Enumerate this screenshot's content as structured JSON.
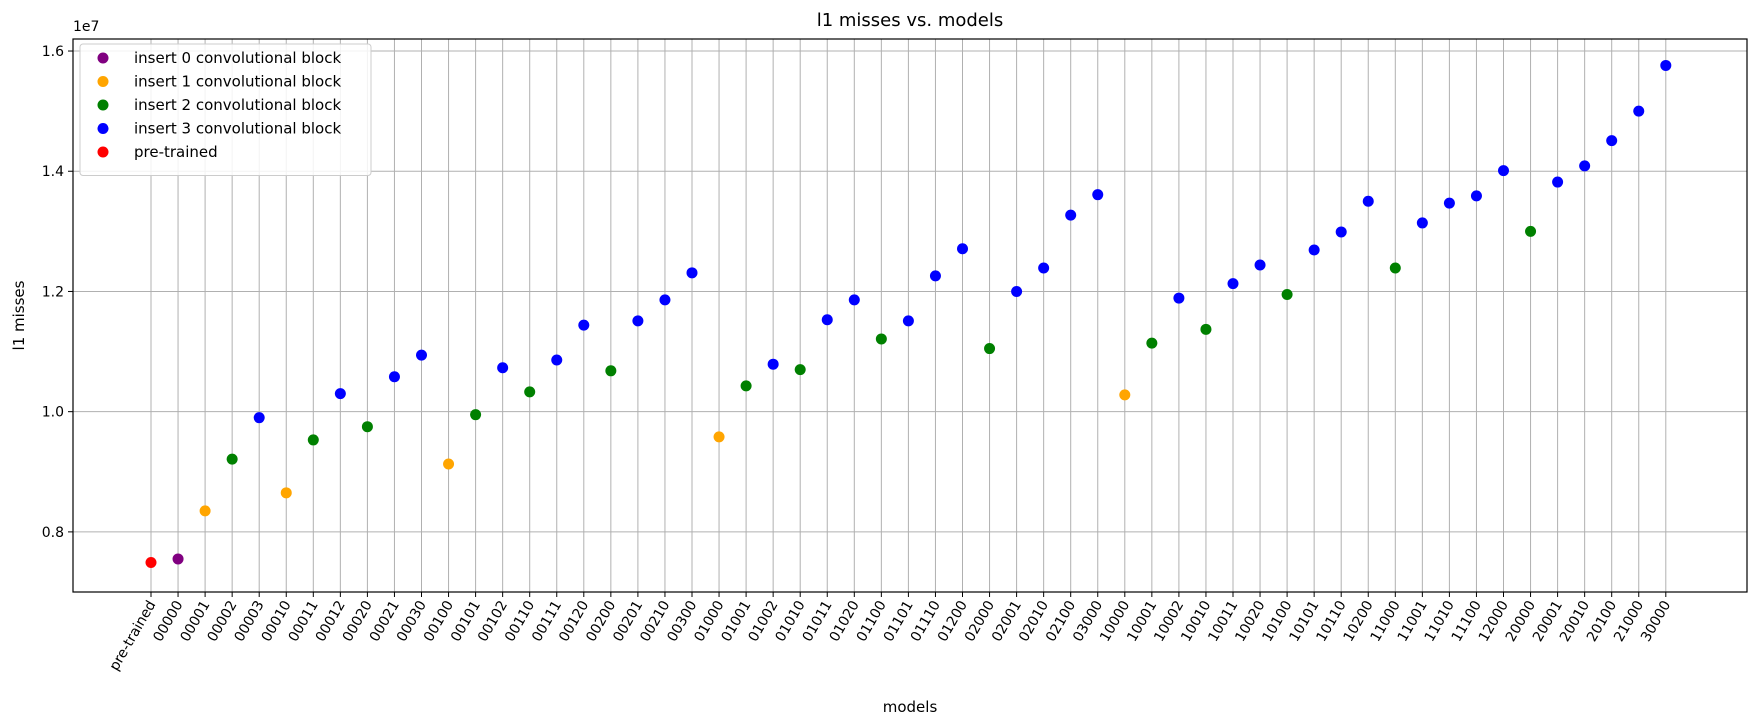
{
  "chart_data": {
    "type": "scatter",
    "title": "l1 misses vs. models",
    "xlabel": "models",
    "ylabel": "l1 misses",
    "y_multiplier_label": "1e7",
    "categories": [
      "pre-trained",
      "00000",
      "00001",
      "00002",
      "00003",
      "00010",
      "00011",
      "00012",
      "00020",
      "00021",
      "00030",
      "00100",
      "00101",
      "00102",
      "00110",
      "00111",
      "00120",
      "00200",
      "00201",
      "00210",
      "00300",
      "01000",
      "01001",
      "01002",
      "01010",
      "01011",
      "01020",
      "01100",
      "01101",
      "01110",
      "01200",
      "02000",
      "02001",
      "02010",
      "02100",
      "03000",
      "10000",
      "10001",
      "10002",
      "10010",
      "10011",
      "10020",
      "10100",
      "10101",
      "10110",
      "10200",
      "11000",
      "11001",
      "11010",
      "11100",
      "12000",
      "20000",
      "20001",
      "20010",
      "20100",
      "21000",
      "30000"
    ],
    "yticks": [
      0.8,
      1.0,
      1.2,
      1.4,
      1.6
    ],
    "ytick_labels": [
      "0.8",
      "1.0",
      "1.2",
      "1.4",
      "1.6"
    ],
    "ylim": [
      0.7,
      1.62
    ],
    "grid": true,
    "legend_position": "top-left",
    "series": [
      {
        "name": "insert 0 convolutional block",
        "color": "#800080",
        "points": [
          [
            "00000",
            0.755
          ]
        ]
      },
      {
        "name": "insert 1 convolutional block",
        "color": "#ffa500",
        "points": [
          [
            "00001",
            0.835
          ],
          [
            "00010",
            0.865
          ],
          [
            "00100",
            0.913
          ],
          [
            "01000",
            0.958
          ],
          [
            "10000",
            1.028
          ]
        ]
      },
      {
        "name": "insert 2 convolutional block",
        "color": "#008000",
        "points": [
          [
            "00002",
            0.921
          ],
          [
            "00011",
            0.953
          ],
          [
            "00020",
            0.975
          ],
          [
            "00101",
            0.995
          ],
          [
            "00110",
            1.033
          ],
          [
            "00200",
            1.068
          ],
          [
            "01001",
            1.043
          ],
          [
            "01010",
            1.07
          ],
          [
            "01100",
            1.121
          ],
          [
            "02000",
            1.105
          ],
          [
            "10001",
            1.114
          ],
          [
            "10010",
            1.137
          ],
          [
            "10100",
            1.195
          ],
          [
            "11000",
            1.239
          ],
          [
            "20000",
            1.3
          ]
        ]
      },
      {
        "name": "insert 3 convolutional block",
        "color": "#0000ff",
        "points": [
          [
            "00003",
            0.99
          ],
          [
            "00012",
            1.03
          ],
          [
            "00021",
            1.058
          ],
          [
            "00030",
            1.094
          ],
          [
            "00102",
            1.073
          ],
          [
            "00111",
            1.086
          ],
          [
            "00120",
            1.144
          ],
          [
            "00201",
            1.151
          ],
          [
            "00210",
            1.186
          ],
          [
            "00300",
            1.231
          ],
          [
            "01002",
            1.079
          ],
          [
            "01011",
            1.153
          ],
          [
            "01020",
            1.186
          ],
          [
            "01101",
            1.151
          ],
          [
            "01110",
            1.226
          ],
          [
            "01200",
            1.271
          ],
          [
            "02001",
            1.2
          ],
          [
            "02010",
            1.239
          ],
          [
            "02100",
            1.327
          ],
          [
            "03000",
            1.361
          ],
          [
            "10002",
            1.189
          ],
          [
            "10011",
            1.213
          ],
          [
            "10020",
            1.244
          ],
          [
            "10101",
            1.269
          ],
          [
            "10110",
            1.299
          ],
          [
            "10200",
            1.35
          ],
          [
            "11001",
            1.314
          ],
          [
            "11010",
            1.347
          ],
          [
            "11100",
            1.359
          ],
          [
            "12000",
            1.401
          ],
          [
            "20001",
            1.382
          ],
          [
            "20010",
            1.409
          ],
          [
            "20100",
            1.451
          ],
          [
            "21000",
            1.5
          ],
          [
            "30000",
            1.576
          ]
        ]
      },
      {
        "name": "pre-trained",
        "color": "#ff0000",
        "points": [
          [
            "pre-trained",
            0.749
          ]
        ]
      }
    ]
  }
}
